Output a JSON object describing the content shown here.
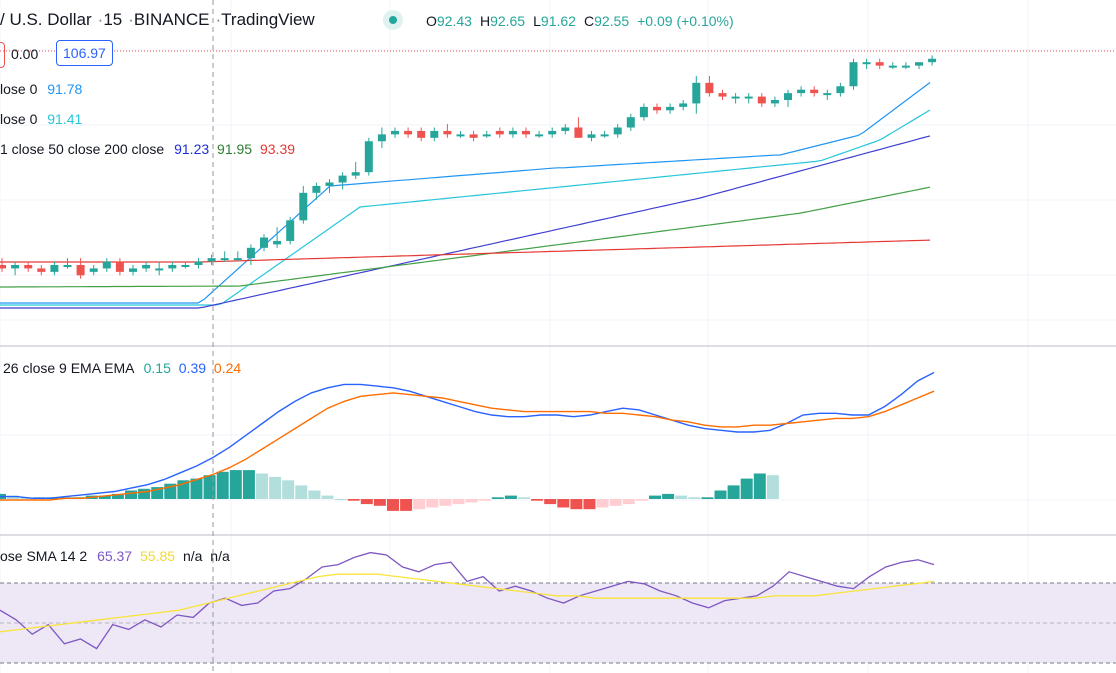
{
  "header": {
    "symbol": "/ U.S. Dollar",
    "interval": "15",
    "exchange": "BINANCE",
    "source": "TradingView",
    "ohlc": {
      "o_label": "O",
      "o": "92.43",
      "h_label": "H",
      "h": "92.65",
      "l_label": "L",
      "l": "91.62",
      "c_label": "C",
      "c": "92.55",
      "change": "+0.09 (+0.10%)"
    }
  },
  "legends": {
    "volume_value": "0.00",
    "buy_box": "106.97",
    "ema1_text": "lose 0",
    "ema1_value": "91.78",
    "ema2_text": "lose 0",
    "ema2_value": "91.41",
    "ma_text": "1 close 50 close 200 close",
    "ma_values": [
      "91.23",
      "91.95",
      "93.39"
    ],
    "macd_text": "26 close 9 EMA EMA",
    "macd_values": [
      "0.15",
      "0.39",
      "0.24"
    ],
    "rsi_text": "ose SMA 14 2",
    "rsi_values": [
      "65.37",
      "55.85",
      "n/a",
      "n/a"
    ]
  },
  "colors": {
    "up": "#26a69a",
    "down": "#ef5350",
    "ema_fast": "#2196f3",
    "ema_slow": "#26c6da",
    "ma_blue": "#3f3fd0",
    "ma_green": "#43a047",
    "ma_red": "#e53935",
    "macd": "#2962ff",
    "signal": "#ff6d00",
    "hist_up": "#26a69a",
    "hist_up_light": "#b2dfdb",
    "hist_down": "#ef5350",
    "hist_down_light": "#ffcdd2",
    "rsi": "#7e57c2",
    "rsi_ma": "#f9e43a",
    "rsi_band": "#ede7f6",
    "legend_blue": "#2196f3",
    "legend_cyan": "#26c6da",
    "legend_navy": "#1e2fd6",
    "legend_green": "#2e7d32",
    "legend_red": "#e53935",
    "legend_purple": "#7e57c2",
    "legend_yellow": "#f2d835"
  },
  "chart_data": [
    {
      "type": "candlestick",
      "title": "",
      "ylim": [
        89.2,
        93.2
      ],
      "candles": [
        [
          90.0,
          90.1,
          89.9,
          89.95
        ],
        [
          89.95,
          90.05,
          89.85,
          90.0
        ],
        [
          90.0,
          90.05,
          89.9,
          89.95
        ],
        [
          89.95,
          90.0,
          89.85,
          89.9
        ],
        [
          89.9,
          90.05,
          89.85,
          90.0
        ],
        [
          90.0,
          90.1,
          89.95,
          90.0
        ],
        [
          90.0,
          90.1,
          89.8,
          89.85
        ],
        [
          89.9,
          90.0,
          89.85,
          89.95
        ],
        [
          89.95,
          90.1,
          89.9,
          90.05
        ],
        [
          90.05,
          90.1,
          89.85,
          89.9
        ],
        [
          89.9,
          90.0,
          89.85,
          89.95
        ],
        [
          89.95,
          90.05,
          89.9,
          90.0
        ],
        [
          89.95,
          90.05,
          89.85,
          89.95
        ],
        [
          89.95,
          90.05,
          89.9,
          90.0
        ],
        [
          90.0,
          90.05,
          89.95,
          90.0
        ],
        [
          90.0,
          90.1,
          89.95,
          90.05
        ],
        [
          90.05,
          90.15,
          90.0,
          90.1
        ],
        [
          90.1,
          90.2,
          90.05,
          90.1
        ],
        [
          90.1,
          90.2,
          90.05,
          90.1
        ],
        [
          90.1,
          90.3,
          90.0,
          90.25
        ],
        [
          90.25,
          90.45,
          90.2,
          90.4
        ],
        [
          90.3,
          90.55,
          90.25,
          90.35
        ],
        [
          90.35,
          90.7,
          90.3,
          90.65
        ],
        [
          90.65,
          91.15,
          90.6,
          91.05
        ],
        [
          91.05,
          91.2,
          90.95,
          91.15
        ],
        [
          91.15,
          91.25,
          91.05,
          91.2
        ],
        [
          91.2,
          91.35,
          91.1,
          91.3
        ],
        [
          91.3,
          91.5,
          91.25,
          91.35
        ],
        [
          91.35,
          91.85,
          91.3,
          91.8
        ],
        [
          91.8,
          92.0,
          91.7,
          91.9
        ],
        [
          91.9,
          92.0,
          91.85,
          91.95
        ],
        [
          91.95,
          92.0,
          91.85,
          91.9
        ],
        [
          91.95,
          92.0,
          91.8,
          91.85
        ],
        [
          91.85,
          92.0,
          91.8,
          91.95
        ],
        [
          91.95,
          92.05,
          91.85,
          91.9
        ],
        [
          91.9,
          91.95,
          91.85,
          91.9
        ],
        [
          91.9,
          91.95,
          91.8,
          91.85
        ],
        [
          91.9,
          91.95,
          91.85,
          91.9
        ],
        [
          91.95,
          92.0,
          91.85,
          91.9
        ],
        [
          91.9,
          92.0,
          91.85,
          91.95
        ],
        [
          91.95,
          92.0,
          91.85,
          91.9
        ],
        [
          91.9,
          91.95,
          91.85,
          91.9
        ],
        [
          91.9,
          92.0,
          91.85,
          91.95
        ],
        [
          91.95,
          92.05,
          91.9,
          92.0
        ],
        [
          92.0,
          92.15,
          91.85,
          91.85
        ],
        [
          91.85,
          91.95,
          91.8,
          91.9
        ],
        [
          91.9,
          91.95,
          91.85,
          91.9
        ],
        [
          91.9,
          92.05,
          91.85,
          92.0
        ],
        [
          92.0,
          92.2,
          91.95,
          92.15
        ],
        [
          92.15,
          92.35,
          92.1,
          92.3
        ],
        [
          92.3,
          92.35,
          92.2,
          92.25
        ],
        [
          92.25,
          92.35,
          92.2,
          92.3
        ],
        [
          92.3,
          92.4,
          92.25,
          92.35
        ],
        [
          92.35,
          92.75,
          92.2,
          92.65
        ],
        [
          92.65,
          92.75,
          92.45,
          92.5
        ],
        [
          92.5,
          92.55,
          92.4,
          92.45
        ],
        [
          92.45,
          92.5,
          92.35,
          92.45
        ],
        [
          92.45,
          92.5,
          92.35,
          92.45
        ],
        [
          92.45,
          92.5,
          92.3,
          92.35
        ],
        [
          92.35,
          92.45,
          92.3,
          92.4
        ],
        [
          92.4,
          92.55,
          92.3,
          92.5
        ],
        [
          92.5,
          92.6,
          92.45,
          92.55
        ],
        [
          92.55,
          92.6,
          92.45,
          92.5
        ],
        [
          92.5,
          92.55,
          92.4,
          92.5
        ],
        [
          92.5,
          92.65,
          92.45,
          92.6
        ],
        [
          92.6,
          93.0,
          92.55,
          92.95
        ],
        [
          92.95,
          93.0,
          92.85,
          92.95
        ],
        [
          92.95,
          93.0,
          92.85,
          92.9
        ],
        [
          92.9,
          92.95,
          92.85,
          92.9
        ],
        [
          92.9,
          92.95,
          92.85,
          92.9
        ],
        [
          92.9,
          92.95,
          92.85,
          92.95
        ],
        [
          92.95,
          93.05,
          92.9,
          93.0
        ]
      ]
    },
    {
      "type": "line",
      "title": "",
      "series": [
        {
          "name": "",
          "values": [
            0.02,
            0.02,
            0.01,
            0.01,
            0.02,
            0.03,
            0.04,
            0.05,
            0.07,
            0.09,
            0.12,
            0.16,
            0.2,
            0.25,
            0.31,
            0.38,
            0.45,
            0.52,
            0.58,
            0.63,
            0.66,
            0.68,
            0.68,
            0.67,
            0.66,
            0.64,
            0.61,
            0.58,
            0.55,
            0.52,
            0.5,
            0.49,
            0.49,
            0.5,
            0.5,
            0.49,
            0.5,
            0.52,
            0.54,
            0.53,
            0.5,
            0.47,
            0.44,
            0.42,
            0.41,
            0.4,
            0.4,
            0.41,
            0.45,
            0.5,
            0.51,
            0.51,
            0.5,
            0.5,
            0.55,
            0.62,
            0.7,
            0.75
          ]
        },
        {
          "name": "",
          "values": [
            0.0,
            0.0,
            0.0,
            0.0,
            0.01,
            0.01,
            0.02,
            0.03,
            0.04,
            0.05,
            0.07,
            0.09,
            0.12,
            0.15,
            0.19,
            0.24,
            0.3,
            0.36,
            0.42,
            0.48,
            0.54,
            0.58,
            0.61,
            0.62,
            0.63,
            0.62,
            0.61,
            0.6,
            0.58,
            0.56,
            0.54,
            0.53,
            0.52,
            0.52,
            0.52,
            0.52,
            0.52,
            0.51,
            0.51,
            0.5,
            0.49,
            0.47,
            0.46,
            0.44,
            0.43,
            0.43,
            0.44,
            0.44,
            0.45,
            0.46,
            0.47,
            0.48,
            0.48,
            0.49,
            0.52,
            0.56,
            0.6,
            0.64
          ]
        }
      ],
      "histogram": [
        0.03,
        0.02,
        0.01,
        0.01,
        0.01,
        0.01,
        0.01,
        0.02,
        0.02,
        0.03,
        0.05,
        0.06,
        0.07,
        0.09,
        0.11,
        0.12,
        0.14,
        0.16,
        0.17,
        0.17,
        0.15,
        0.13,
        0.11,
        0.08,
        0.05,
        0.02,
        0.0,
        -0.01,
        -0.03,
        -0.04,
        -0.07,
        -0.07,
        -0.06,
        -0.05,
        -0.04,
        -0.03,
        -0.02,
        -0.01,
        0.01,
        0.02,
        0.01,
        -0.01,
        -0.03,
        -0.05,
        -0.06,
        -0.06,
        -0.05,
        -0.04,
        -0.03,
        -0.01,
        0.02,
        0.03,
        0.02,
        0.01,
        0.01,
        0.05,
        0.08,
        0.12,
        0.15,
        0.14
      ]
    },
    {
      "type": "line",
      "title": "",
      "ylim": [
        30,
        80
      ],
      "series": [
        {
          "name": "",
          "values": [
            52,
            48,
            42,
            46,
            38,
            40,
            36,
            46,
            44,
            48,
            45,
            50,
            49,
            55,
            57,
            54,
            55,
            60,
            61,
            65,
            70,
            71,
            74,
            76,
            75,
            70,
            68,
            71,
            72,
            64,
            66,
            60,
            62,
            60,
            57,
            55,
            58,
            60,
            62,
            64,
            63,
            60,
            58,
            55,
            53,
            56,
            57,
            58,
            62,
            68,
            66,
            64,
            62,
            61,
            66,
            70,
            72,
            73,
            71
          ]
        },
        {
          "name": "",
          "values": [
            43,
            44,
            45,
            46,
            47,
            48,
            49,
            50,
            51,
            52,
            54,
            56,
            58,
            60,
            62,
            64,
            66,
            67,
            67,
            67,
            66,
            65,
            64,
            63,
            62,
            61,
            60,
            59,
            58,
            58,
            57,
            57,
            57,
            57,
            57,
            57,
            57,
            57,
            57,
            58,
            58,
            58,
            59,
            60,
            61,
            62,
            63,
            64
          ]
        }
      ]
    }
  ]
}
